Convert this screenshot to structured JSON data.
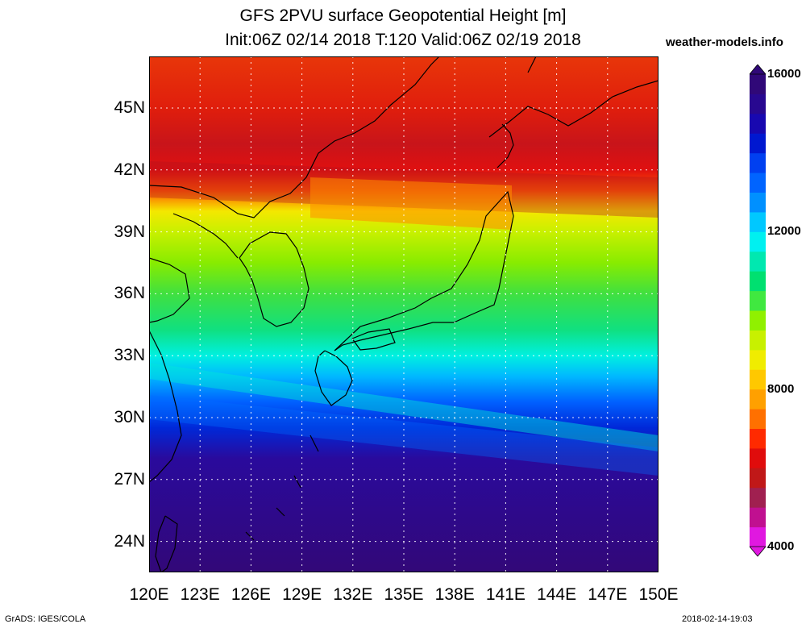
{
  "header": {
    "title_line1": "GFS 2PVU surface Geopotential Height [m]",
    "title_line2": "Init:06Z 02/14 2018 T:120 Valid:06Z 02/19 2018",
    "site": "weather-models.info"
  },
  "map": {
    "lon_ticks": [
      "120E",
      "123E",
      "126E",
      "129E",
      "132E",
      "135E",
      "138E",
      "141E",
      "144E",
      "147E",
      "150E"
    ],
    "lat_ticks": [
      "24N",
      "27N",
      "30N",
      "33N",
      "36N",
      "39N",
      "42N",
      "45N"
    ],
    "lon_range": [
      120,
      150
    ],
    "lat_range": [
      22.5,
      47.5
    ]
  },
  "colorbar": {
    "labels": [
      "16000",
      "12000",
      "8000",
      "4000"
    ],
    "range": [
      4000,
      16000
    ],
    "colors": [
      "#e018e0",
      "#c01090",
      "#a02050",
      "#c01818",
      "#e00c0c",
      "#ff2a00",
      "#ff7000",
      "#ffa000",
      "#ffc800",
      "#f0ec00",
      "#c8f000",
      "#90f000",
      "#40e840",
      "#00e070",
      "#00e8b0",
      "#00f0f0",
      "#00c8ff",
      "#0090ff",
      "#0064ff",
      "#0040f0",
      "#0018d0",
      "#1808b0",
      "#280890",
      "#300878"
    ]
  },
  "footer": {
    "left": "GrADS: IGES/COLA",
    "right": "2018-02-14-19:03"
  }
}
